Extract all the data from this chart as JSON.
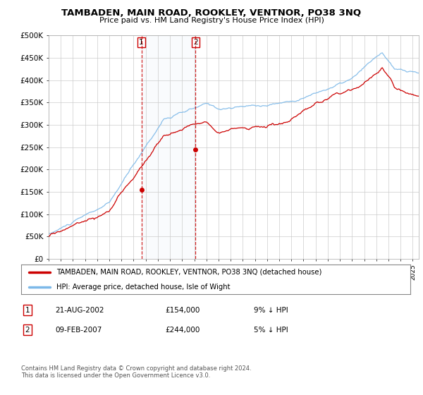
{
  "title": "TAMBADEN, MAIN ROAD, ROOKLEY, VENTNOR, PO38 3NQ",
  "subtitle": "Price paid vs. HM Land Registry's House Price Index (HPI)",
  "ylabel_ticks": [
    "£0",
    "£50K",
    "£100K",
    "£150K",
    "£200K",
    "£250K",
    "£300K",
    "£350K",
    "£400K",
    "£450K",
    "£500K"
  ],
  "ytick_values": [
    0,
    50000,
    100000,
    150000,
    200000,
    250000,
    300000,
    350000,
    400000,
    450000,
    500000
  ],
  "ylim": [
    0,
    500000
  ],
  "xlim_start": 1995.0,
  "xlim_end": 2025.5,
  "sale1_x": 2002.64,
  "sale1_y": 154000,
  "sale2_x": 2007.1,
  "sale2_y": 244000,
  "legend_line1": "TAMBADEN, MAIN ROAD, ROOKLEY, VENTNOR, PO38 3NQ (detached house)",
  "legend_line2": "HPI: Average price, detached house, Isle of Wight",
  "sale1_date": "21-AUG-2002",
  "sale1_price": "£154,000",
  "sale1_hpi": "9% ↓ HPI",
  "sale2_date": "09-FEB-2007",
  "sale2_price": "£244,000",
  "sale2_hpi": "5% ↓ HPI",
  "footer": "Contains HM Land Registry data © Crown copyright and database right 2024.\nThis data is licensed under the Open Government Licence v3.0.",
  "hpi_color": "#7cb8e8",
  "price_color": "#cc0000",
  "bg_color": "#ffffff",
  "plot_bg_color": "#ffffff",
  "grid_color": "#cccccc",
  "shade_color": "#d8eaf8"
}
